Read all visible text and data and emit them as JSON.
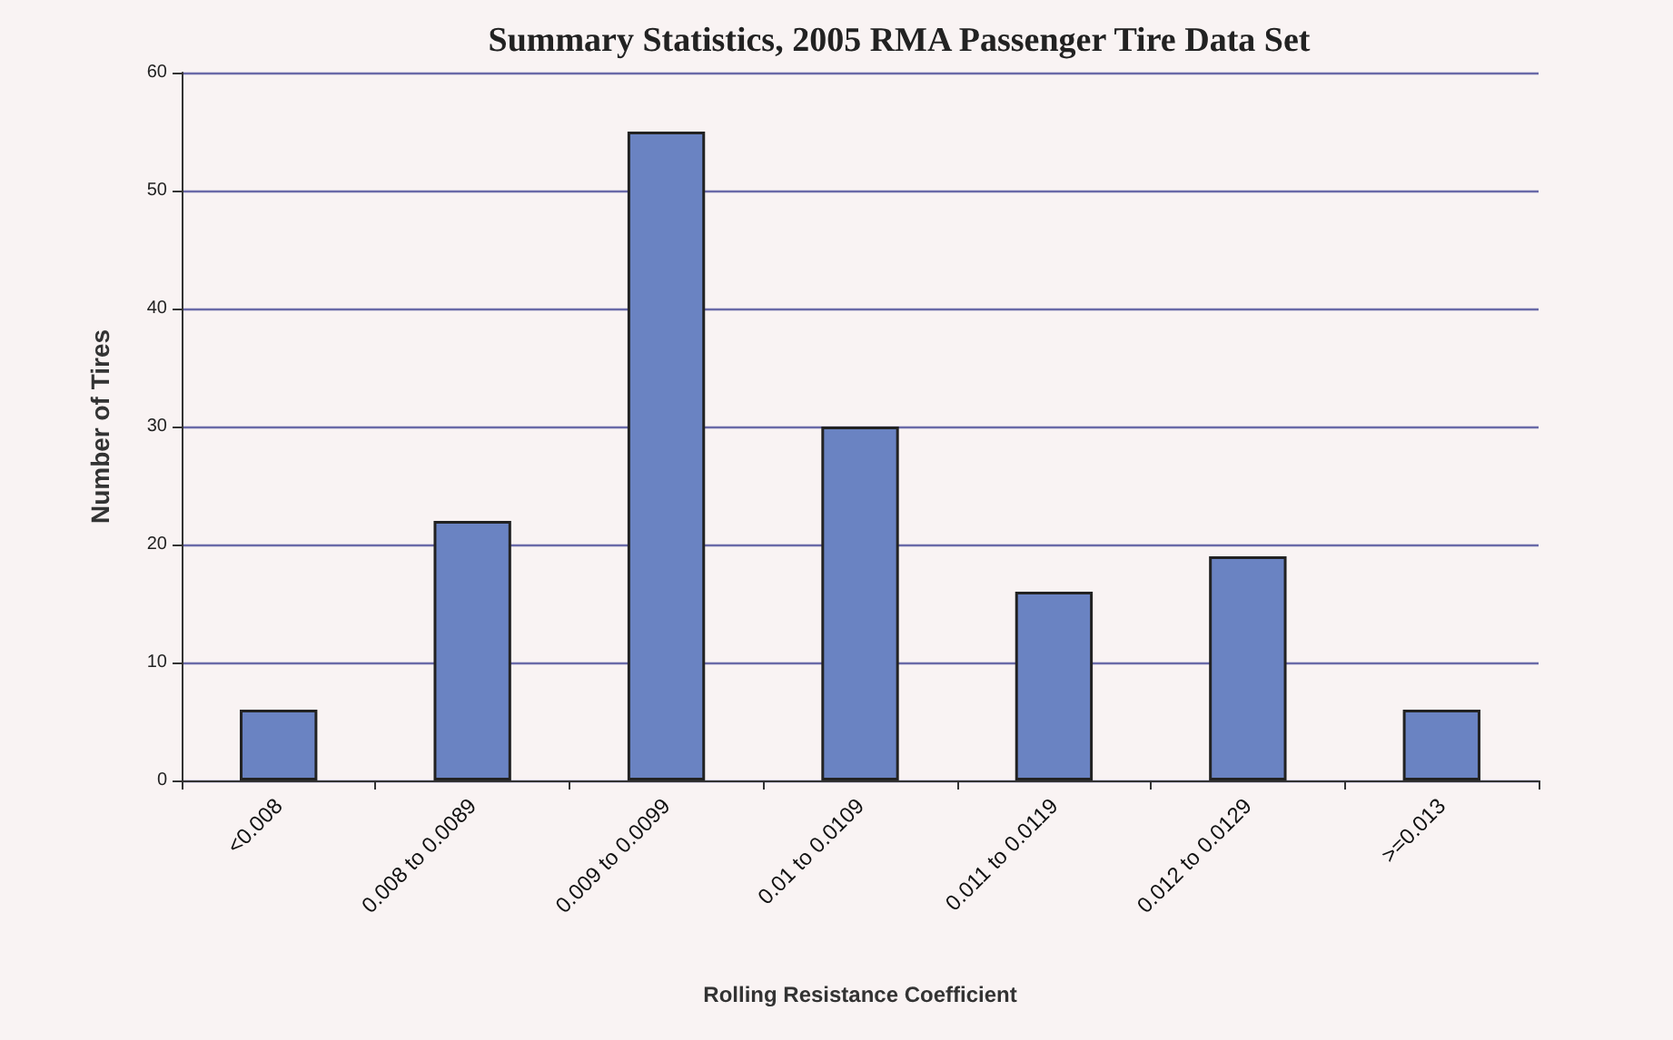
{
  "chart_data": {
    "type": "bar",
    "title": "Summary Statistics, 2005 RMA Passenger Tire Data Set",
    "xlabel": "Rolling Resistance Coefficient",
    "ylabel": "Number of Tires",
    "categories": [
      "<0.008",
      "0.008 to 0.0089",
      "0.009 to 0.0099",
      "0.01 to 0.0109",
      "0.011 to 0.0119",
      "0.012 to 0.0129",
      ">=0.013"
    ],
    "values": [
      6,
      22,
      55,
      30,
      16,
      19,
      6
    ],
    "color": "#6a83c2",
    "ylim": [
      0,
      60
    ],
    "yticks": [
      0,
      10,
      20,
      30,
      40,
      50,
      60
    ],
    "grid": "y"
  }
}
